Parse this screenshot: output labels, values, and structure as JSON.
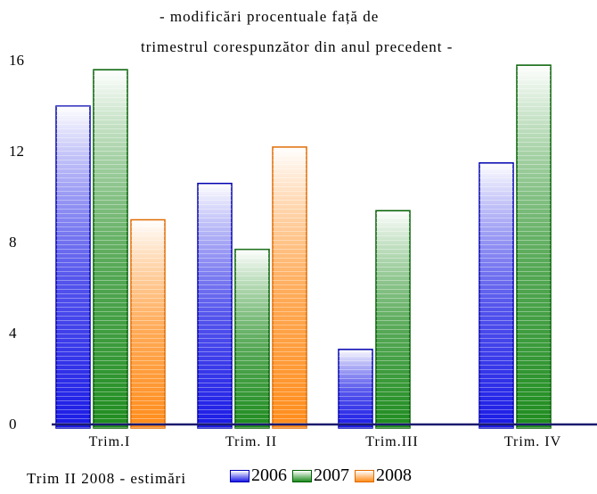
{
  "title_lines": [
    "- modificări procentuale față de",
    "trimestrul corespunzător din anul precedent -"
  ],
  "note": "Trim II 2008 - estimări",
  "chart_data": {
    "type": "bar",
    "categories": [
      "Trim.I",
      "Trim. II",
      "Trim.III",
      "Trim. IV"
    ],
    "series": [
      {
        "name": "2006",
        "values": [
          14.0,
          10.6,
          3.3,
          11.5
        ],
        "color": "#1a1ae6",
        "stroke": "#0000b0"
      },
      {
        "name": "2007",
        "values": [
          15.6,
          7.7,
          9.4,
          15.8
        ],
        "color": "#1e8c1e",
        "stroke": "#005f00"
      },
      {
        "name": "2008",
        "values": [
          9.0,
          12.2,
          null,
          null
        ],
        "color": "#ff8c1a",
        "stroke": "#e06a00"
      }
    ],
    "yticks": [
      0,
      4,
      8,
      12,
      16
    ],
    "ylim": [
      0,
      16
    ],
    "grid": false,
    "legend_position": "bottom"
  }
}
